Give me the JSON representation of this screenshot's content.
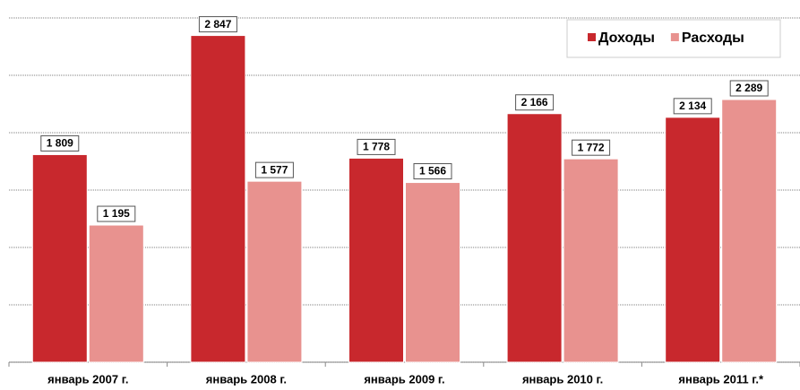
{
  "chart_data": {
    "type": "bar",
    "categories": [
      "январь 2007 г.",
      "январь 2008 г.",
      "январь 2009 г.",
      "январь 2010 г.",
      "январь 2011 г.*"
    ],
    "series": [
      {
        "name": "Доходы",
        "color": "#c8282d",
        "values": [
          1809,
          2847,
          1778,
          2166,
          2134
        ],
        "value_labels": [
          "1 809",
          "2 847",
          "1 778",
          "2 166",
          "2 134"
        ]
      },
      {
        "name": "Расходы",
        "color": "#e8928f",
        "values": [
          1195,
          1577,
          1566,
          1772,
          2289
        ],
        "value_labels": [
          "1 195",
          "1 577",
          "1 566",
          "1 772",
          "2 289"
        ]
      }
    ],
    "ylim": [
      0,
      3000
    ],
    "yticks": [
      0,
      500,
      1000,
      1500,
      2000,
      2500,
      3000
    ],
    "grid": true,
    "legend": "top-right"
  }
}
